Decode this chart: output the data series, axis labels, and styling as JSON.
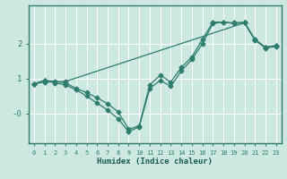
{
  "title": "",
  "xlabel": "Humidex (Indice chaleur)",
  "ylabel": "",
  "bg_color": "#cce8e0",
  "grid_color": "#ffffff",
  "line_color": "#2e7d6e",
  "line1_x": [
    0,
    1,
    2,
    3,
    4,
    5,
    6,
    7,
    8,
    9,
    10,
    11,
    12,
    13,
    14,
    15,
    16,
    17,
    18,
    19,
    20,
    21,
    22,
    23
  ],
  "line1_y": [
    0.85,
    0.95,
    0.88,
    0.82,
    0.68,
    0.5,
    0.3,
    0.1,
    -0.15,
    -0.52,
    -0.38,
    0.72,
    0.95,
    0.78,
    1.22,
    1.55,
    2.0,
    2.58,
    2.62,
    2.58,
    2.6,
    2.1,
    1.88,
    1.92
  ],
  "line2_x": [
    0,
    1,
    2,
    3,
    4,
    5,
    6,
    7,
    8,
    9,
    10,
    11,
    12,
    13,
    14,
    15,
    16,
    17,
    18,
    19,
    20,
    21,
    22,
    23
  ],
  "line2_y": [
    0.85,
    0.95,
    0.92,
    0.88,
    0.72,
    0.6,
    0.45,
    0.28,
    0.05,
    -0.45,
    -0.35,
    0.82,
    1.1,
    0.9,
    1.32,
    1.62,
    2.12,
    2.62,
    2.62,
    2.6,
    2.62,
    2.12,
    1.9,
    1.95
  ],
  "line3_x": [
    0,
    1,
    3,
    20,
    21,
    22,
    23
  ],
  "line3_y": [
    0.85,
    0.9,
    0.92,
    2.6,
    2.12,
    1.9,
    1.95
  ],
  "yticks": [
    0,
    1,
    2
  ],
  "ytick_labels": [
    "-0",
    "1",
    "2"
  ],
  "ylim": [
    -0.85,
    3.1
  ],
  "xlim": [
    -0.5,
    23.5
  ],
  "xtick_labels": [
    "0",
    "1",
    "2",
    "3",
    "4",
    "5",
    "6",
    "7",
    "8",
    "9",
    "10",
    "11",
    "12",
    "13",
    "14",
    "15",
    "16",
    "17",
    "18",
    "19",
    "20",
    "21",
    "22",
    "23"
  ],
  "marker": "D",
  "markersize": 2.5,
  "linewidth": 0.9
}
